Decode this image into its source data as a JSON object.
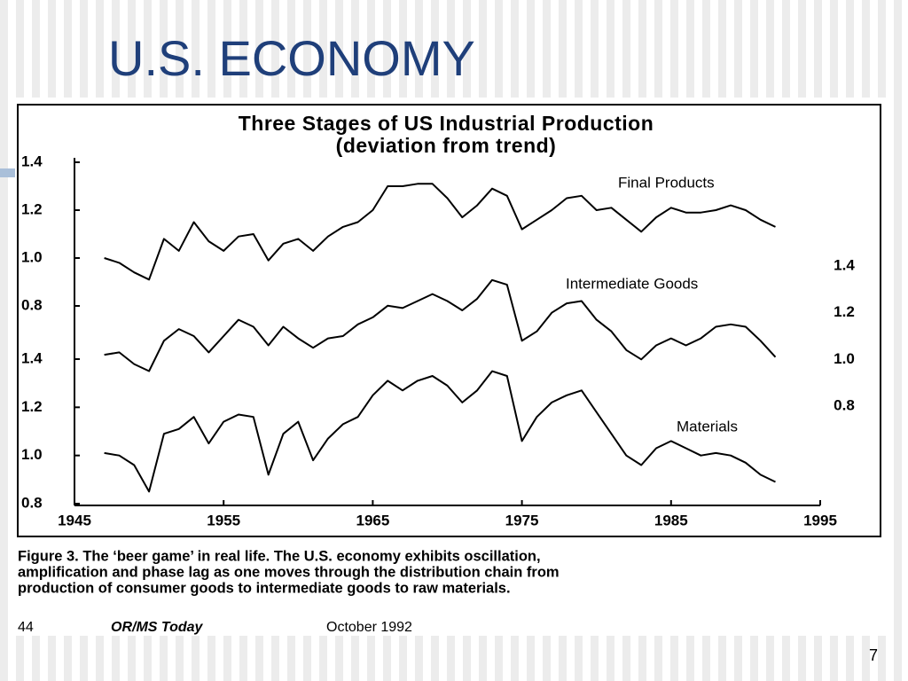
{
  "slide": {
    "title": "U.S. ECONOMY",
    "page_number": "7"
  },
  "chart_data": [
    {
      "type": "line",
      "title": "Three Stages of US Industrial Production",
      "subtitle": "(deviation from trend)",
      "x": [
        1947,
        1948,
        1949,
        1950,
        1951,
        1952,
        1953,
        1954,
        1955,
        1956,
        1957,
        1958,
        1959,
        1960,
        1961,
        1962,
        1963,
        1964,
        1965,
        1966,
        1967,
        1968,
        1969,
        1970,
        1971,
        1972,
        1973,
        1974,
        1975,
        1976,
        1977,
        1978,
        1979,
        1980,
        1981,
        1982,
        1983,
        1984,
        1985,
        1986,
        1987,
        1988,
        1989,
        1990,
        1991,
        1992
      ],
      "xlim": [
        1945,
        1995
      ],
      "xticks": [
        1945,
        1955,
        1965,
        1975,
        1985,
        1995
      ],
      "ylim": [
        0.8,
        1.4
      ],
      "yticks": [
        1.4,
        1.2,
        {
          "value": 1.0,
          "label": "1.0"
        },
        0.8
      ],
      "y_axis_side": "left",
      "series": [
        {
          "name": "Final Products",
          "color": "#000000",
          "values": [
            1.0,
            0.98,
            0.94,
            0.91,
            1.08,
            1.03,
            1.15,
            1.07,
            1.03,
            1.09,
            1.1,
            0.99,
            1.06,
            1.08,
            1.03,
            1.09,
            1.13,
            1.15,
            1.2,
            1.3,
            1.3,
            1.31,
            1.31,
            1.25,
            1.17,
            1.22,
            1.29,
            1.26,
            1.12,
            1.16,
            1.2,
            1.25,
            1.26,
            1.2,
            1.21,
            1.16,
            1.11,
            1.17,
            1.21,
            1.19,
            1.19,
            1.2,
            1.22,
            1.2,
            1.16,
            1.13
          ]
        }
      ]
    },
    {
      "type": "line",
      "x": [
        1947,
        1948,
        1949,
        1950,
        1951,
        1952,
        1953,
        1954,
        1955,
        1956,
        1957,
        1958,
        1959,
        1960,
        1961,
        1962,
        1963,
        1964,
        1965,
        1966,
        1967,
        1968,
        1969,
        1970,
        1971,
        1972,
        1973,
        1974,
        1975,
        1976,
        1977,
        1978,
        1979,
        1980,
        1981,
        1982,
        1983,
        1984,
        1985,
        1986,
        1987,
        1988,
        1989,
        1990,
        1991,
        1992
      ],
      "xlim": [
        1945,
        1995
      ],
      "ylim": [
        0.8,
        1.4
      ],
      "yticks": [
        1.4,
        1.2,
        {
          "value": 1.0,
          "label": "1.0"
        },
        0.8
      ],
      "y_axis_side": "right",
      "series": [
        {
          "name": "Intermediate Goods",
          "color": "#000000",
          "values": [
            1.02,
            1.03,
            0.98,
            0.95,
            1.08,
            1.13,
            1.1,
            1.03,
            1.1,
            1.17,
            1.14,
            1.06,
            1.14,
            1.09,
            1.05,
            1.09,
            1.1,
            1.15,
            1.18,
            1.23,
            1.22,
            1.25,
            1.28,
            1.25,
            1.21,
            1.26,
            1.34,
            1.32,
            1.08,
            1.12,
            1.2,
            1.24,
            1.25,
            1.17,
            1.12,
            1.04,
            1.0,
            1.06,
            1.09,
            1.06,
            1.09,
            1.14,
            1.15,
            1.14,
            1.08,
            1.01
          ]
        }
      ]
    },
    {
      "type": "line",
      "x": [
        1947,
        1948,
        1949,
        1950,
        1951,
        1952,
        1953,
        1954,
        1955,
        1956,
        1957,
        1958,
        1959,
        1960,
        1961,
        1962,
        1963,
        1964,
        1965,
        1966,
        1967,
        1968,
        1969,
        1970,
        1971,
        1972,
        1973,
        1974,
        1975,
        1976,
        1977,
        1978,
        1979,
        1980,
        1981,
        1982,
        1983,
        1984,
        1985,
        1986,
        1987,
        1988,
        1989,
        1990,
        1991,
        1992
      ],
      "xlim": [
        1945,
        1995
      ],
      "ylim": [
        0.8,
        1.4
      ],
      "yticks": [
        1.4,
        1.2,
        {
          "value": 1.0,
          "label": "1.0"
        },
        0.8
      ],
      "y_axis_side": "left",
      "series": [
        {
          "name": "Materials",
          "color": "#000000",
          "values": [
            1.01,
            1.0,
            0.96,
            0.85,
            1.09,
            1.11,
            1.16,
            1.05,
            1.14,
            1.17,
            1.16,
            0.92,
            1.09,
            1.14,
            0.98,
            1.07,
            1.13,
            1.16,
            1.25,
            1.31,
            1.27,
            1.31,
            1.33,
            1.29,
            1.22,
            1.27,
            1.35,
            1.33,
            1.06,
            1.16,
            1.22,
            1.25,
            1.27,
            1.18,
            1.09,
            1.0,
            0.96,
            1.03,
            1.06,
            1.03,
            1.0,
            1.01,
            1.0,
            0.97,
            0.92,
            0.89
          ]
        }
      ]
    }
  ],
  "figure": {
    "caption": [
      "Figure 3. The ‘beer game’ in real life. The U.S. economy exhibits oscillation,",
      "amplification and phase lag as one moves through the distribution chain from",
      "production of consumer goods to intermediate goods to raw materials."
    ],
    "footer": [
      "44",
      "OR/MS Today",
      "October 1992"
    ]
  }
}
